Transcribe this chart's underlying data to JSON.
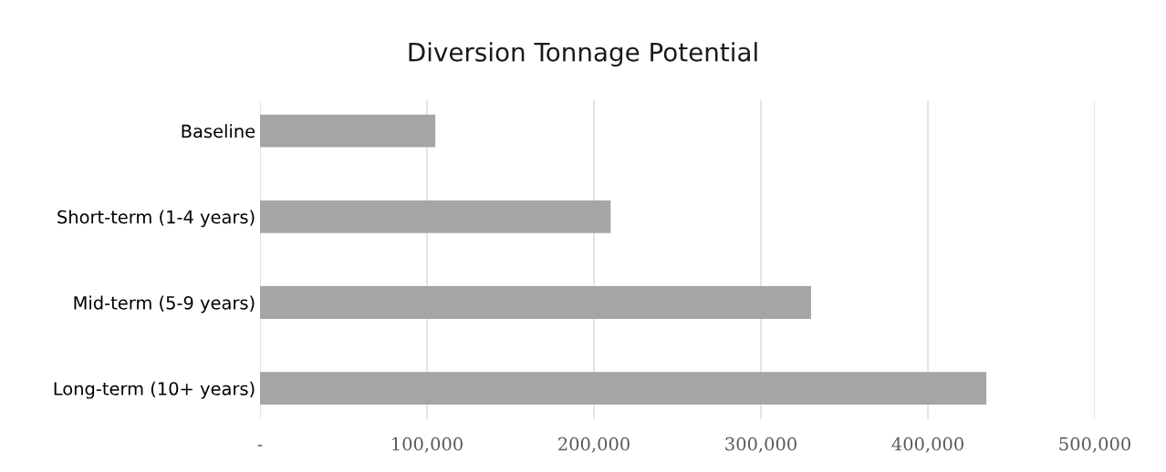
{
  "chart_data": {
    "type": "bar",
    "orientation": "horizontal",
    "title": "Diversion Tonnage Potential",
    "categories": [
      "Baseline",
      "Short-term (1-4 years)",
      "Mid-term (5-9 years)",
      "Long-term (10+ years)"
    ],
    "values": [
      105000,
      210000,
      330000,
      435000
    ],
    "color": "#a5a5a5",
    "xlim": [
      0,
      500000
    ],
    "xticks": [
      {
        "value": 0,
        "label": "-"
      },
      {
        "value": 100000,
        "label": "100,000"
      },
      {
        "value": 200000,
        "label": "200,000"
      },
      {
        "value": 300000,
        "label": "300,000"
      },
      {
        "value": 400000,
        "label": "400,000"
      },
      {
        "value": 500000,
        "label": "500,000"
      }
    ],
    "grid": "x",
    "legend": false
  }
}
